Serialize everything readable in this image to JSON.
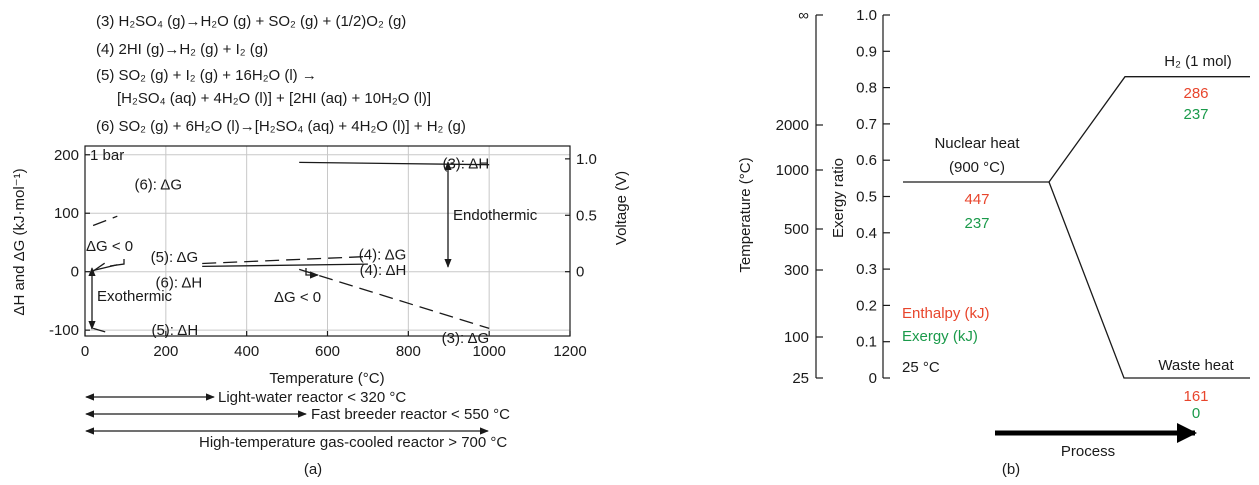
{
  "panel_a": {
    "label": "(a)",
    "equations": [
      "(3) H₂SO₄ (g)→H₂O (g) + SO₂ (g) + (1/2)O₂ (g)",
      "(4) 2HI (g)→H₂ (g) + I₂ (g)",
      "(5) SO₂ (g) + I₂ (g) + 16H₂O (l) →",
      "[H₂SO₄ (aq) + 4H₂O (l)] + [2HI (aq) + 10H₂O (l)]",
      "(6) SO₂ (g) + 6H₂O (l)→[H₂SO₄ (aq) + 4H₂O (l)] + H₂ (g)"
    ],
    "pressure_label": "1 bar",
    "annotations": {
      "endothermic": "Endothermic",
      "exothermic": "Exothermic",
      "dg_neg_left": "ΔG < 0",
      "dg_neg_mid": "ΔG < 0"
    },
    "reactor_ranges": [
      {
        "label": "Light-water reactor < 320 °C",
        "from": 0,
        "to": 320
      },
      {
        "label": "Fast breeder reactor < 550 °C",
        "from": 0,
        "to": 550
      },
      {
        "label": "High-temperature gas-cooled reactor > 700 °C",
        "from": 0,
        "to": 1000
      }
    ]
  },
  "panel_b": {
    "label": "(b)",
    "temperature_axis": {
      "label": "Temperature (°C)",
      "ticks": [
        "∞",
        "2000",
        "1000",
        "500",
        "300",
        "100",
        "25"
      ]
    },
    "exergy_axis": {
      "label": "Exergy ratio",
      "ticks": [
        "1.0",
        "0.9",
        "0.8",
        "0.7",
        "0.6",
        "0.5",
        "0.4",
        "0.3",
        "0.2",
        "0.1",
        "0"
      ]
    },
    "nuclear_heat": {
      "label": "Nuclear heat",
      "temp": "(900 °C)",
      "enthalpy": "447",
      "exergy": "237"
    },
    "hydrogen": {
      "label": "H₂ (1 mol)",
      "enthalpy": "286",
      "exergy": "237"
    },
    "waste_heat": {
      "label": "Waste heat",
      "enthalpy": "161",
      "exergy": "0"
    },
    "legend": {
      "enthalpy": "Enthalpy (kJ)",
      "exergy": "Exergy (kJ)",
      "ambient": "25 °C"
    },
    "process_label": "Process",
    "colors": {
      "enthalpy": "#e8452c",
      "exergy": "#1a9a4a"
    }
  },
  "chart_data": [
    {
      "type": "line",
      "title": "",
      "xlabel": "Temperature (°C)",
      "ylabel": "ΔH and ΔG (kJ·mol⁻¹)",
      "y2label": "Voltage (V)",
      "xlim": [
        0,
        1200
      ],
      "ylim": [
        -110,
        215
      ],
      "xticks": [
        0,
        200,
        400,
        600,
        800,
        1000,
        1200
      ],
      "yticks": [
        -100,
        0,
        100,
        200
      ],
      "y2ticks": [
        {
          "v": 0,
          "label": "0"
        },
        {
          "v": 96.5,
          "label": "0.5"
        },
        {
          "v": 193,
          "label": "1.0"
        }
      ],
      "grid": true,
      "series": [
        {
          "name": "(3): ΔH",
          "style": "solid",
          "x": [
            530,
            1000
          ],
          "y": [
            187,
            183
          ]
        },
        {
          "name": "(3): ΔG",
          "style": "dashed",
          "x": [
            530,
            1000
          ],
          "y": [
            4,
            -97
          ]
        },
        {
          "name": "(4): ΔG",
          "style": "dashed",
          "x": [
            290,
            700
          ],
          "y": [
            14,
            26
          ]
        },
        {
          "name": "(4): ΔH",
          "style": "solid",
          "x": [
            290,
            700
          ],
          "y": [
            9,
            13
          ]
        },
        {
          "name": "(5): ΔG",
          "style": "dashed",
          "x": [
            20,
            60
          ],
          "y": [
            1,
            20
          ]
        },
        {
          "name": "(5): ΔH",
          "style": "solid",
          "x": [
            20,
            50
          ],
          "y": [
            -97,
            -103
          ]
        },
        {
          "name": "(6): ΔG",
          "style": "dashed",
          "x": [
            20,
            80
          ],
          "y": [
            79,
            95
          ]
        },
        {
          "name": "(6): ΔH",
          "style": "solid",
          "x": [
            20,
            80
          ],
          "y": [
            2,
            12
          ]
        }
      ]
    },
    {
      "type": "line",
      "title": "",
      "xlabel": "Process",
      "ylabel": "Exergy ratio",
      "ylim": [
        0,
        1.0
      ],
      "series": [
        {
          "name": "",
          "points": [
            [
              "Nuclear heat",
              0.54
            ],
            [
              "H₂ (1 mol)",
              0.83
            ]
          ]
        },
        {
          "name": "",
          "points": [
            [
              "Nuclear heat",
              0.54
            ],
            [
              "Waste heat",
              0.0
            ]
          ]
        }
      ]
    }
  ]
}
